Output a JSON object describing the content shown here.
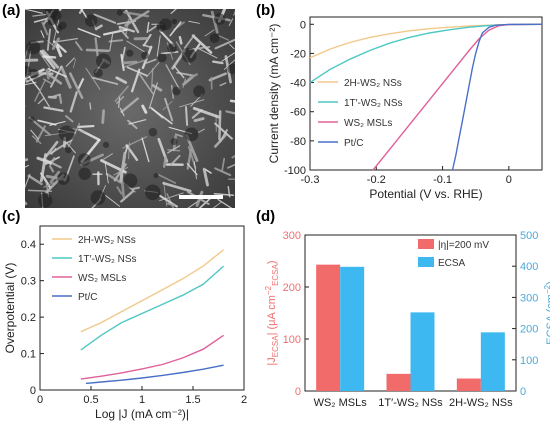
{
  "panel_labels": {
    "a": "(a)",
    "b": "(b)",
    "c": "(c)",
    "d": "(d)"
  },
  "chart_data": [
    {
      "id": "b",
      "type": "line",
      "xlabel": "Potential (V vs. RHE)",
      "ylabel": "Current density (mA cm⁻²)",
      "xlim": [
        -0.3,
        0.05
      ],
      "ylim": [
        -100,
        5
      ],
      "xticks": [
        "-0.3",
        "-0.2",
        "-0.1",
        "0"
      ],
      "xtick_values": [
        -0.3,
        -0.2,
        -0.1,
        0
      ],
      "yticks": [
        "0",
        "-20",
        "-40",
        "-60",
        "-80",
        "-100"
      ],
      "ytick_values": [
        0,
        -20,
        -40,
        -60,
        -80,
        -100
      ],
      "legend_position": "center-left",
      "series": [
        {
          "name": "2H-WS₂ NSs",
          "color": "#F2C98A",
          "x": [
            -0.3,
            -0.27,
            -0.24,
            -0.21,
            -0.18,
            -0.15,
            -0.12,
            -0.09,
            -0.06,
            -0.03,
            0.0,
            0.05
          ],
          "y": [
            -23,
            -17,
            -12.5,
            -9,
            -6.5,
            -4.5,
            -3,
            -2,
            -1.2,
            -0.6,
            -0.2,
            0
          ]
        },
        {
          "name": "1T′-WS₂ NSs",
          "color": "#4FC8C4",
          "x": [
            -0.3,
            -0.27,
            -0.24,
            -0.21,
            -0.18,
            -0.15,
            -0.12,
            -0.09,
            -0.06,
            -0.03,
            0.0,
            0.05
          ],
          "y": [
            -40,
            -31,
            -24,
            -18,
            -13,
            -9,
            -6,
            -3.8,
            -2,
            -0.8,
            -0.2,
            0
          ]
        },
        {
          "name": "WS₂ MSLs",
          "color": "#E0609A",
          "x": [
            -0.205,
            -0.18,
            -0.15,
            -0.12,
            -0.09,
            -0.06,
            -0.045,
            -0.03,
            -0.015,
            0.0,
            0.05
          ],
          "y": [
            -100,
            -86,
            -69,
            -52,
            -35,
            -18,
            -10,
            -4,
            -1,
            -0.2,
            0
          ]
        },
        {
          "name": "Pt/C",
          "color": "#4A6FC8",
          "x": [
            -0.085,
            -0.08,
            -0.075,
            -0.07,
            -0.065,
            -0.06,
            -0.055,
            -0.05,
            -0.045,
            -0.04,
            -0.03,
            -0.02,
            0.0,
            0.05
          ],
          "y": [
            -100,
            -90,
            -78,
            -66,
            -54,
            -42,
            -30,
            -20,
            -12,
            -6,
            -2,
            -0.6,
            -0.1,
            0
          ]
        }
      ]
    },
    {
      "id": "c",
      "type": "line",
      "xlabel": "Log |J (mA cm⁻²)|",
      "ylabel": "Overpotential (V)",
      "xlim": [
        0,
        2
      ],
      "ylim": [
        0,
        0.45
      ],
      "xticks": [
        "0",
        "0.5",
        "1",
        "1.5",
        "2"
      ],
      "xtick_values": [
        0,
        0.5,
        1,
        1.5,
        2
      ],
      "yticks": [
        "0",
        "0.1",
        "0.2",
        "0.3",
        "0.4"
      ],
      "ytick_values": [
        0,
        0.1,
        0.2,
        0.3,
        0.4
      ],
      "legend_position": "top-left",
      "series": [
        {
          "name": "2H-WS₂ NSs",
          "color": "#F2C98A",
          "x": [
            0.4,
            0.6,
            0.8,
            1.0,
            1.2,
            1.4,
            1.6,
            1.8
          ],
          "y": [
            0.16,
            0.185,
            0.215,
            0.245,
            0.275,
            0.305,
            0.34,
            0.385
          ]
        },
        {
          "name": "1T′-WS₂ NSs",
          "color": "#4FC8C4",
          "x": [
            0.4,
            0.6,
            0.8,
            1.0,
            1.2,
            1.4,
            1.6,
            1.8
          ],
          "y": [
            0.11,
            0.15,
            0.185,
            0.21,
            0.235,
            0.26,
            0.29,
            0.34
          ]
        },
        {
          "name": "WS₂ MSLs",
          "color": "#E0609A",
          "x": [
            0.4,
            0.6,
            0.8,
            1.0,
            1.2,
            1.4,
            1.6,
            1.8
          ],
          "y": [
            0.03,
            0.038,
            0.047,
            0.058,
            0.07,
            0.088,
            0.112,
            0.15
          ]
        },
        {
          "name": "Pt/C",
          "color": "#4A6FC8",
          "x": [
            0.45,
            0.6,
            0.8,
            1.0,
            1.2,
            1.4,
            1.6,
            1.8
          ],
          "y": [
            0.018,
            0.022,
            0.027,
            0.033,
            0.04,
            0.048,
            0.057,
            0.068
          ]
        }
      ]
    },
    {
      "id": "d",
      "type": "bar",
      "categories": [
        "WS₂ MSLs",
        "1T′-WS₂ NSs",
        "2H-WS₂ NSs"
      ],
      "ylabel": "|Jᴇᴄₛₐ| (μA cm⁻²ᴇᴄₛₐ)",
      "ylabel_parts": {
        "main": "|J",
        "sub": "ECSA",
        "mid": "| (μA cm",
        "sup": "−2",
        "sub2": "ECSA",
        "end": ")"
      },
      "y2label": "ECSA (cm⁻²)",
      "y2label_parts": {
        "main": "ECSA (cm",
        "sup": "−2",
        "end": ")"
      },
      "ylim": [
        0,
        300
      ],
      "y2lim": [
        0,
        500
      ],
      "yticks": [
        "0",
        "100",
        "200",
        "300"
      ],
      "ytick_values": [
        0,
        100,
        200,
        300
      ],
      "y2ticks": [
        "0",
        "100",
        "200",
        "300",
        "400",
        "500"
      ],
      "y2tick_values": [
        0,
        100,
        200,
        300,
        400,
        500
      ],
      "left_axis_color": "#F07070",
      "right_axis_color": "#4FA9D8",
      "legend_position": "top-right",
      "series": [
        {
          "name": "|η|=200 mV",
          "color": "#F26B6B",
          "axis": "left",
          "values": [
            243,
            33,
            24
          ]
        },
        {
          "name": "ECSA",
          "color": "#3DB8F0",
          "axis": "right",
          "values": [
            398,
            252,
            188
          ]
        }
      ]
    }
  ]
}
